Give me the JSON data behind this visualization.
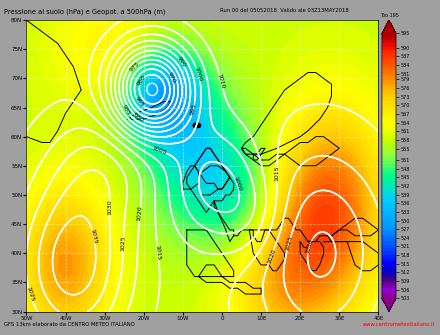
{
  "title_left": "Pressione al suolo (hPa) e Geopot. a 500hPa (m)",
  "title_right": "Run 00 del 05052018  Valido ale 03Z13MAY2018",
  "footer_left": "GFS 13km elaborato da CENTRO METEO ITALIANO",
  "footer_right": "www.centrometeoitaliano.it",
  "colorbar_label": "Too 195",
  "colorbar_values": [
    595,
    590,
    587,
    584,
    581,
    579,
    576,
    573,
    570,
    567,
    564,
    561,
    558,
    555,
    551,
    548,
    545,
    542,
    539,
    536,
    533,
    530,
    527,
    524,
    521,
    518,
    515,
    512,
    509,
    506,
    503
  ],
  "lon_min": -50,
  "lon_max": 40,
  "lat_min": 30,
  "lat_max": 80,
  "colorbar_colors": [
    "#8b008b",
    "#9400d3",
    "#4b0082",
    "#0000cd",
    "#0000ff",
    "#0033ff",
    "#0055ff",
    "#0077ff",
    "#0099ff",
    "#00aaff",
    "#00bbff",
    "#00ccff",
    "#00dddd",
    "#00eeaa",
    "#00ff88",
    "#44ff66",
    "#88ff44",
    "#aaff22",
    "#ccff00",
    "#eeff00",
    "#ffff00",
    "#ffee00",
    "#ffdd00",
    "#ffcc00",
    "#ffaa00",
    "#ff8800",
    "#ff6600",
    "#ff4400",
    "#ff2200",
    "#dd0000",
    "#aa0000"
  ]
}
